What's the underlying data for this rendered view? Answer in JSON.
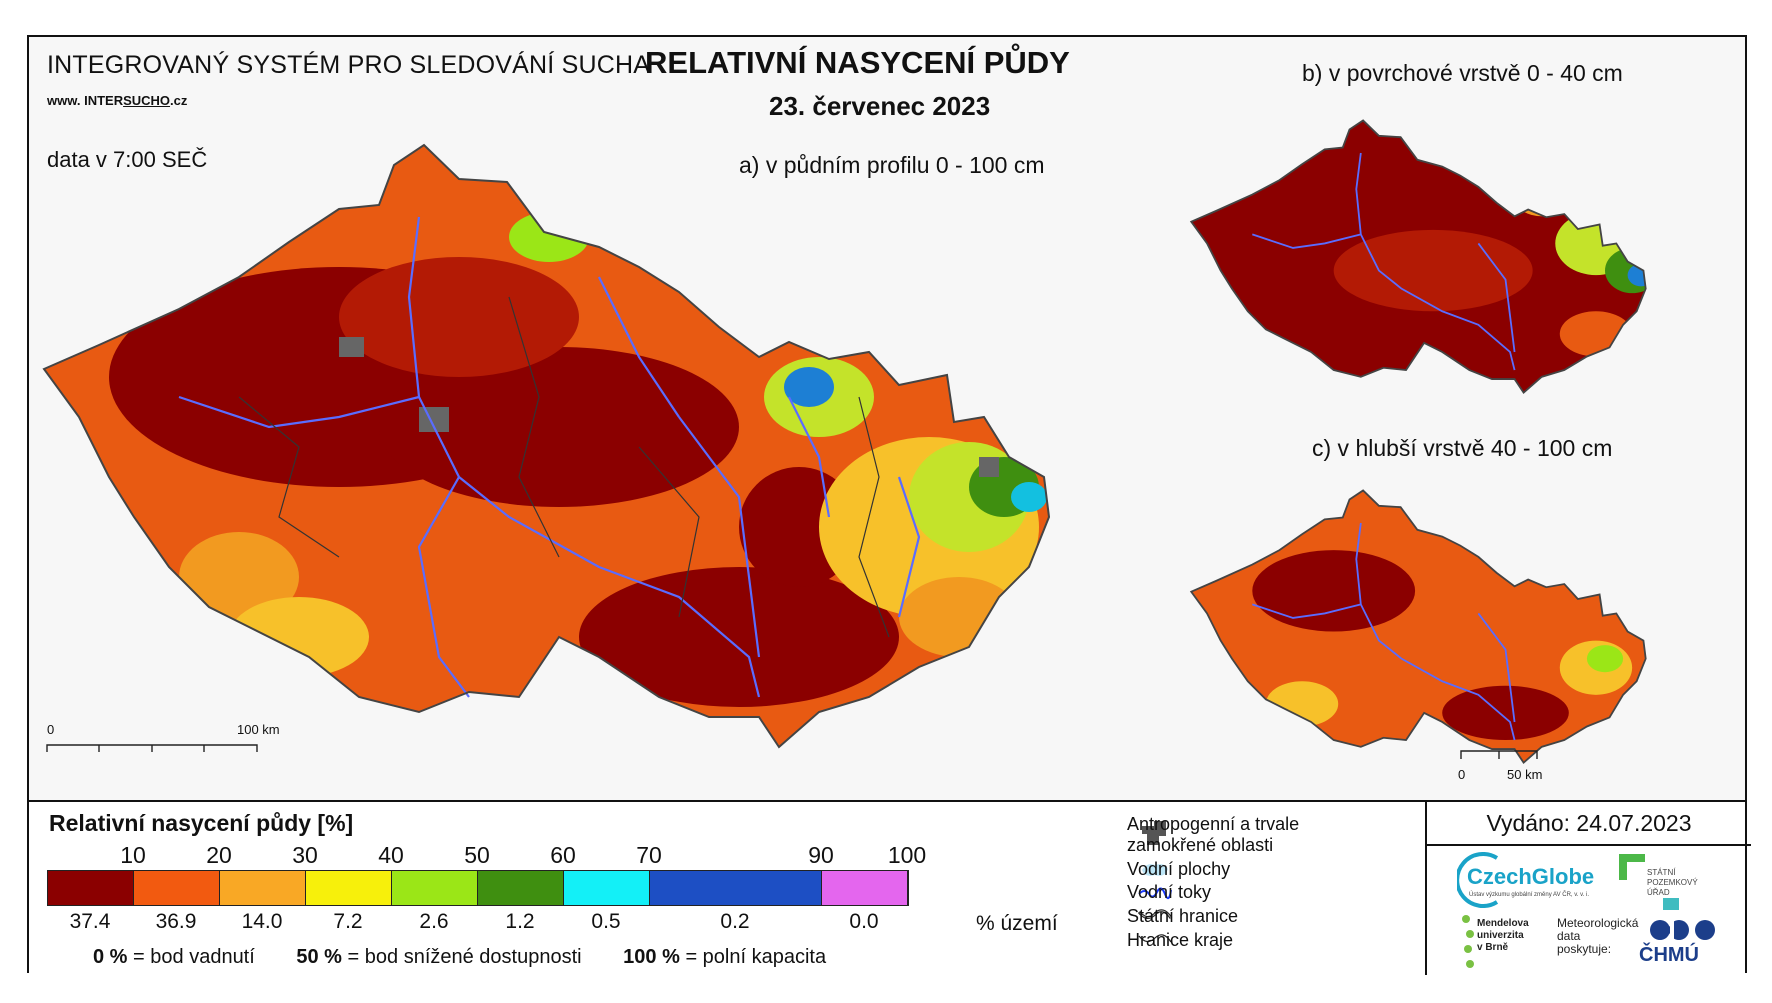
{
  "header": {
    "system_title": "INTEGROVANÝ SYSTÉM PRO SLEDOVÁNÍ SUCHA",
    "website_prefix": "www. INTER",
    "website_underlined": "SUCHO",
    "website_suffix": ".cz",
    "data_time": "data v 7:00 SEČ",
    "main_title": "RELATIVNÍ NASYCENÍ PŮDY",
    "date": "23. červenec 2023"
  },
  "maps": {
    "main_caption": "a) v půdním profilu 0 - 100 cm",
    "top_caption": "b) v povrchové vrstvě 0 - 40 cm",
    "bottom_caption": "c) v hlubší vrstvě 40 - 100 cm",
    "main_scale": {
      "start": "0",
      "end": "100 km"
    },
    "small_scale": {
      "start": "0",
      "end": "50 km"
    }
  },
  "legend": {
    "title": "Relativní nasycení půdy [%]",
    "thresholds": [
      "10",
      "20",
      "30",
      "40",
      "50",
      "60",
      "70",
      "90",
      "100"
    ],
    "classes": [
      {
        "color": "#8b0000",
        "percent": "37.4",
        "span": 10
      },
      {
        "color": "#f25a10",
        "percent": "36.9",
        "span": 10
      },
      {
        "color": "#f9a825",
        "percent": "14.0",
        "span": 10
      },
      {
        "color": "#f7f00b",
        "percent": "7.2",
        "span": 10
      },
      {
        "color": "#9be617",
        "percent": "2.6",
        "span": 10
      },
      {
        "color": "#3f8f10",
        "percent": "1.2",
        "span": 10
      },
      {
        "color": "#13f0f7",
        "percent": "0.5",
        "span": 10
      },
      {
        "color": "#1d4fc4",
        "percent": "0.2",
        "span": 20
      },
      {
        "color": "#e466ee",
        "percent": "0.0",
        "span": 10
      }
    ],
    "area_unit": "% území",
    "notes": [
      {
        "value": "0 %",
        "text": "= bod vadnutí"
      },
      {
        "value": "50 %",
        "text": "= bod snížené dostupnosti"
      },
      {
        "value": "100 %",
        "text": "= polní kapacita"
      }
    ]
  },
  "symbols": {
    "anthropogenic_line1": "Antropogenní a trvale",
    "anthropogenic_line2": "zamokřené oblasti",
    "water_bodies": "Vodní plochy",
    "water_streams": "Vodní toky",
    "state_border": "Státní hranice",
    "region_border": "Hranice kraje"
  },
  "issued": "Vydáno: 24.07.2023",
  "logos": {
    "czechglobe": "CzechGlobe",
    "czechglobe_sub": "Ústav výzkumu globální změny AV ČR, v. v. i.",
    "spu": [
      "STÁTNÍ",
      "POZEMKOVÝ",
      "ÚŘAD"
    ],
    "mendel": [
      "Mendelova",
      "univerzita",
      "v Brně"
    ],
    "met": [
      "Meteorologická",
      "data",
      "poskytuje:"
    ],
    "chmu": "ČHMÚ"
  }
}
